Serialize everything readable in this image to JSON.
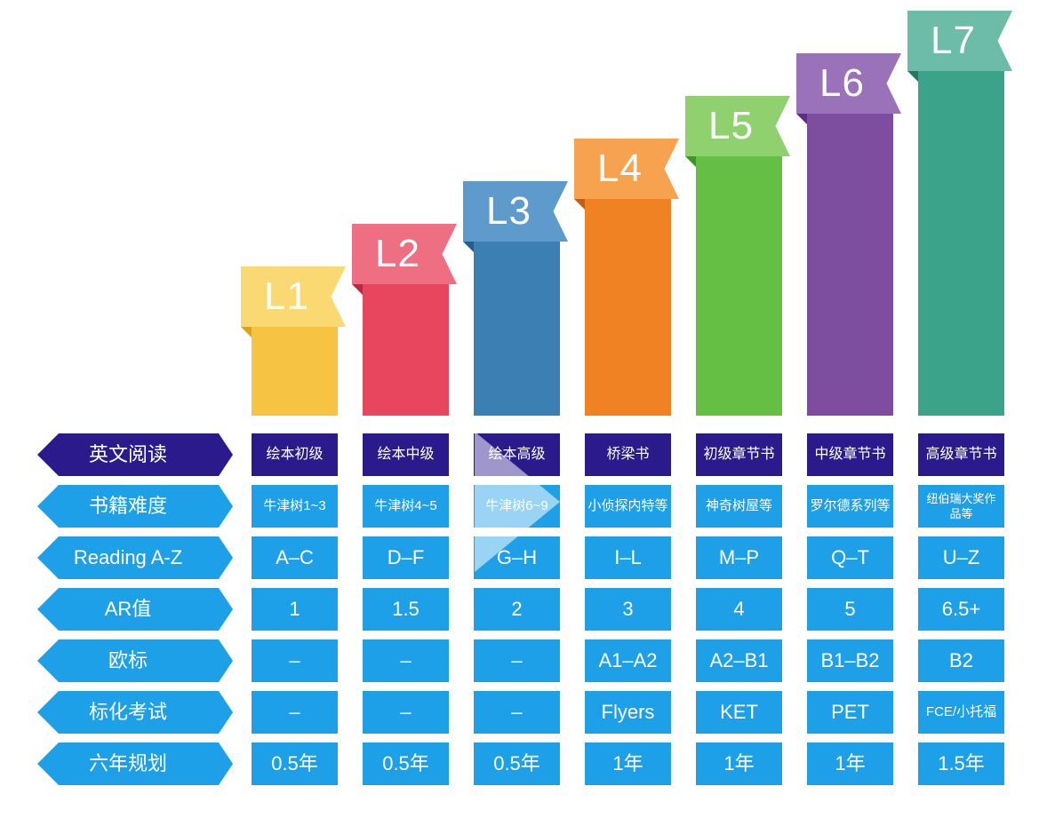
{
  "levels": [
    {
      "label": "L1",
      "color": "#f6c342",
      "tab_color": "#fbd972",
      "fold_color": "#d9a21f"
    },
    {
      "label": "L2",
      "color": "#e8465f",
      "tab_color": "#ef6f82",
      "fold_color": "#b92a42"
    },
    {
      "label": "L3",
      "color": "#3b7fb3",
      "tab_color": "#5e9acb",
      "fold_color": "#245d8a"
    },
    {
      "label": "L4",
      "color": "#f08224",
      "tab_color": "#f6a24f",
      "fold_color": "#c45f10"
    },
    {
      "label": "L5",
      "color": "#66bf45",
      "tab_color": "#8fd16f",
      "fold_color": "#3e9424"
    },
    {
      "label": "L6",
      "color": "#7d4da0",
      "tab_color": "#9a72ba",
      "fold_color": "#5a2f7d"
    },
    {
      "label": "L7",
      "color": "#3aa389",
      "tab_color": "#6dbca8",
      "fold_color": "#227a64"
    }
  ],
  "level_scale": [
    1,
    2,
    3,
    4,
    5,
    6,
    7
  ],
  "rows": [
    {
      "label": "英文阅读",
      "style": "dark",
      "cells": [
        "绘本初级",
        "绘本中级",
        "绘本高级",
        "桥梁书",
        "初级章节书",
        "中级章节书",
        "高级章节书"
      ]
    },
    {
      "label": "书籍难度",
      "style": "small",
      "cells": [
        "牛津树1~3",
        "牛津树4~5",
        "牛津树6~9",
        "小侦探内特等",
        "神奇树屋等",
        "罗尔德系列等",
        "纽伯瑞大奖作品等"
      ]
    },
    {
      "label": "Reading A-Z",
      "style": "normal",
      "cells": [
        "A–C",
        "D–F",
        "G–H",
        "I–L",
        "M–P",
        "Q–T",
        "U–Z"
      ]
    },
    {
      "label": "AR值",
      "style": "normal",
      "cells": [
        "1",
        "1.5",
        "2",
        "3",
        "4",
        "5",
        "6.5+"
      ]
    },
    {
      "label": "欧标",
      "style": "normal",
      "cells": [
        "–",
        "–",
        "–",
        "A1–A2",
        "A2–B1",
        "B1–B2",
        "B2"
      ]
    },
    {
      "label": "标化考试",
      "style": "normal",
      "cells": [
        "–",
        "–",
        "–",
        "Flyers",
        "KET",
        "PET",
        "FCE/小托福"
      ]
    },
    {
      "label": "六年规划",
      "style": "normal",
      "cells": [
        "0.5年",
        "0.5年",
        "0.5年",
        "1年",
        "1年",
        "1年",
        "1.5年"
      ]
    }
  ],
  "colors": {
    "row_label": "#1ea0e8",
    "row_label_dark": "#2a1a8c",
    "cell": "#1ea0e8"
  }
}
